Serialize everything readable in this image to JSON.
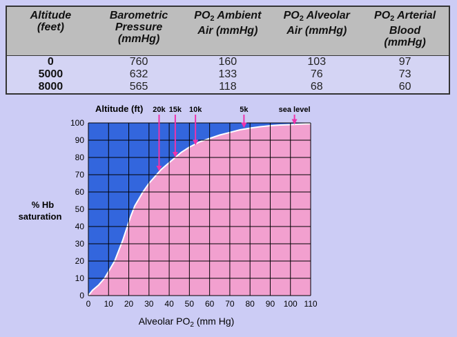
{
  "table": {
    "headers": [
      {
        "line1": "Altitude",
        "line2": "(feet)",
        "line3": ""
      },
      {
        "line1": "Barometric",
        "line2": "Pressure",
        "line3": "(mmHg)"
      },
      {
        "line1": "PO2 Ambient",
        "line2": "Air (mmHg)",
        "line3": ""
      },
      {
        "line1": "PO2  Alveolar",
        "line2": "Air (mmHg)",
        "line3": ""
      },
      {
        "line1": "PO2 Arterial",
        "line2": "Blood",
        "line3": "(mmHg)"
      }
    ],
    "rows": [
      [
        "0",
        "760",
        "160",
        "103",
        "97"
      ],
      [
        "5000",
        "632",
        "133",
        "76",
        "73"
      ],
      [
        "8000",
        "565",
        "118",
        "68",
        "60"
      ]
    ]
  },
  "chart_data": {
    "type": "area",
    "xlabel_prefix": "Alveolar PO",
    "xlabel_sub": "2",
    "xlabel_suffix": " (mm Hg)",
    "ylabel_line1": "% Hb",
    "ylabel_line2": "saturation",
    "altitude_label": "Altitude (ft)",
    "xlim": [
      0,
      110
    ],
    "ylim": [
      0,
      100
    ],
    "xticks": [
      0,
      10,
      20,
      30,
      40,
      50,
      60,
      70,
      80,
      90,
      100,
      110
    ],
    "yticks": [
      0,
      10,
      20,
      30,
      40,
      50,
      60,
      70,
      80,
      90,
      100
    ],
    "grid": true,
    "colors": {
      "above_curve": "#3366dd",
      "below_curve": "#f2a0cf",
      "arrows": "#ee33aa",
      "grid": "#000000"
    },
    "curve": {
      "x": [
        0,
        2,
        5,
        8,
        10,
        13,
        15,
        17,
        19,
        21,
        23,
        25,
        27,
        30,
        33,
        36,
        40,
        43,
        46,
        50,
        55,
        60,
        65,
        70,
        75,
        80,
        85,
        90,
        95,
        100,
        105,
        110
      ],
      "y": [
        0,
        3,
        6,
        10,
        14,
        20,
        26,
        32,
        39,
        46,
        52,
        56,
        60,
        65,
        69,
        73,
        77,
        80,
        83,
        86,
        89,
        91,
        93,
        94.5,
        96,
        97,
        97.8,
        98.4,
        98.8,
        99,
        99.3,
        99.5
      ]
    },
    "altitude_markers": [
      {
        "label": "20k",
        "x": 35,
        "y": 72
      },
      {
        "label": "15k",
        "x": 43,
        "y": 80
      },
      {
        "label": "10k",
        "x": 53,
        "y": 87
      },
      {
        "label": "5k",
        "x": 77,
        "y": 97
      },
      {
        "label": "sea level",
        "x": 102,
        "y": 99
      }
    ]
  }
}
